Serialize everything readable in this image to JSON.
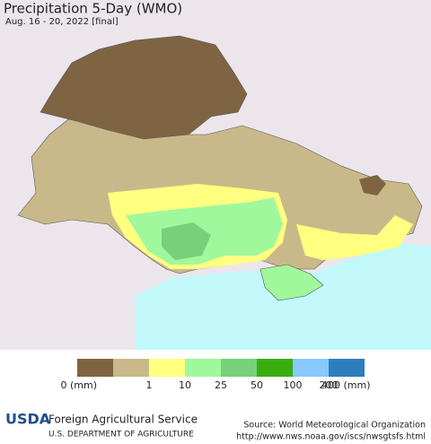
{
  "header": {
    "title": "Precipitation 5-Day (WMO)",
    "subtitle": "Aug. 16 - 20, 2022 [final]"
  },
  "legend": {
    "colors": [
      "#7f6443",
      "#c9b98a",
      "#ffff80",
      "#a0f89d",
      "#78d17a",
      "#3aad0f",
      "#87c9ff",
      "#2e7dbf"
    ],
    "labels": [
      "0 (mm)",
      "1",
      "10",
      "25",
      "50",
      "100",
      "200",
      "400 (mm)"
    ]
  },
  "footer": {
    "logo": "USDA",
    "agency": "Foreign Agricultural Service",
    "department": "U.S. DEPARTMENT OF AGRICULTURE",
    "source": "Source: World Meteorological Organization",
    "url": "http://www.nws.noaa.gov/iscs/nwsgtsfs.html"
  }
}
